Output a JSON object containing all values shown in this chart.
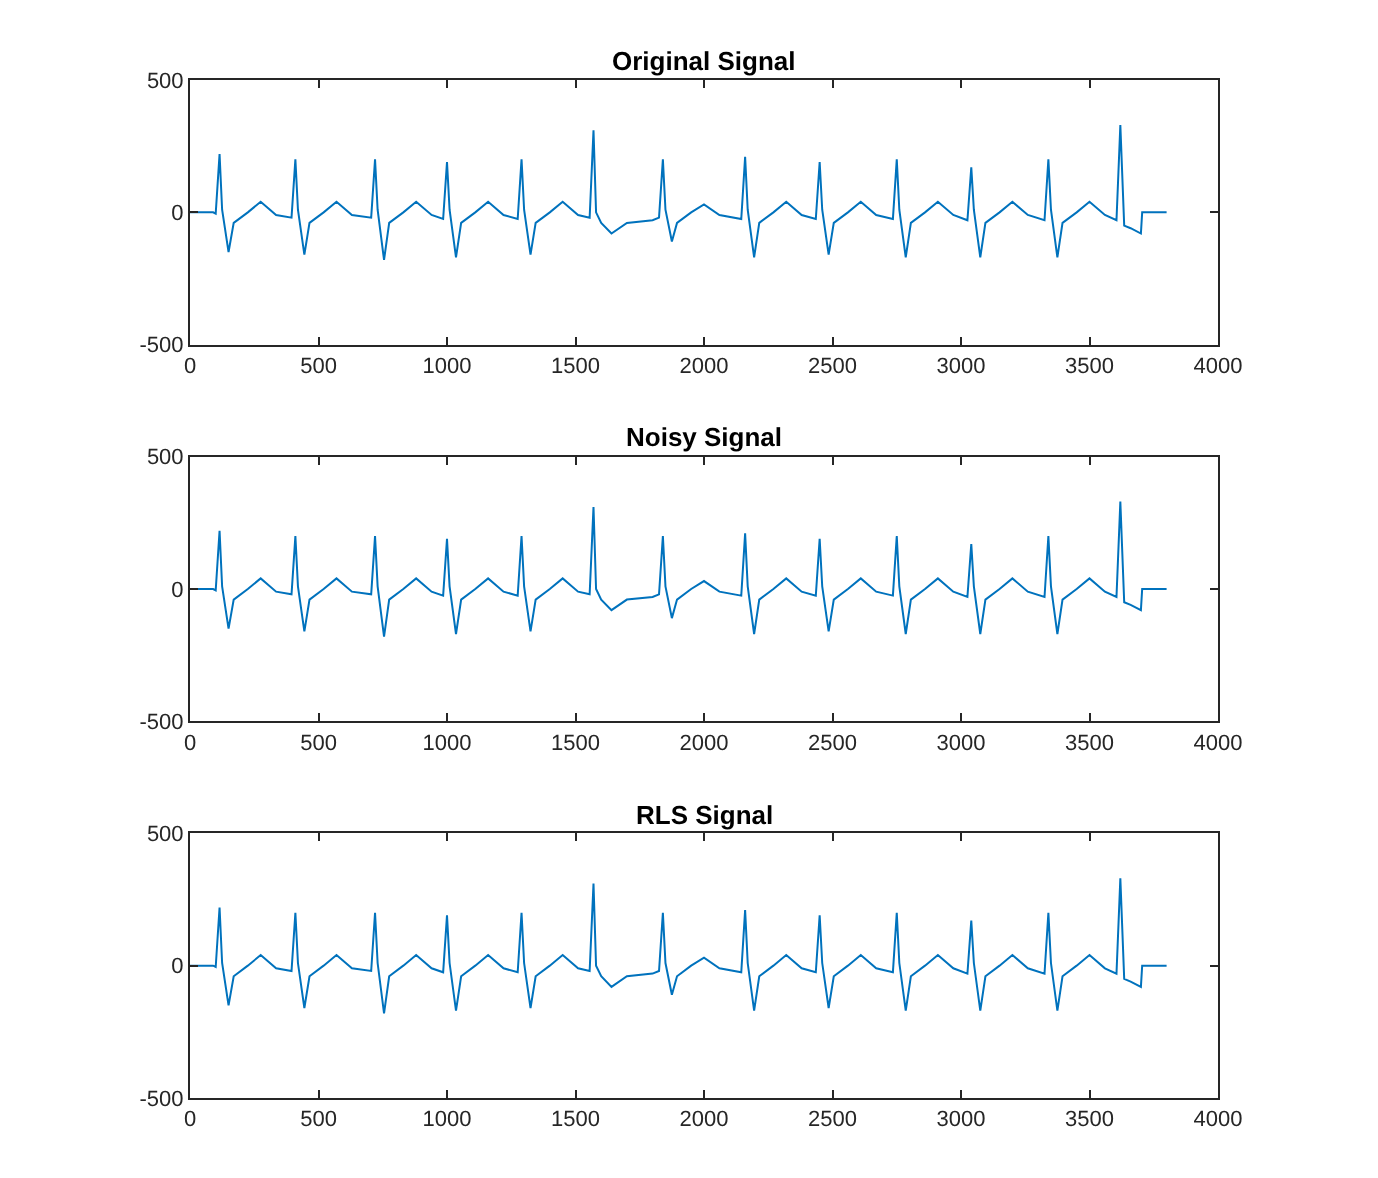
{
  "chart_data": [
    {
      "type": "line",
      "title": "Original Signal",
      "color": "#0072bd",
      "xlim": [
        0,
        4000
      ],
      "xticks": [
        0,
        500,
        1000,
        1500,
        2000,
        2500,
        3000,
        3500,
        4000
      ],
      "ylim": [
        -500,
        500
      ],
      "yticks": [
        -500,
        0,
        500
      ],
      "x": [
        0,
        90,
        100,
        115,
        125,
        150,
        170,
        225,
        275,
        335,
        395,
        410,
        420,
        445,
        465,
        520,
        570,
        630,
        705,
        720,
        730,
        755,
        775,
        830,
        880,
        940,
        985,
        1000,
        1010,
        1035,
        1055,
        1110,
        1160,
        1220,
        1275,
        1290,
        1300,
        1325,
        1345,
        1400,
        1450,
        1510,
        1555,
        1570,
        1580,
        1600,
        1640,
        1700,
        1800,
        1825,
        1840,
        1850,
        1875,
        1895,
        1950,
        2000,
        2060,
        2145,
        2160,
        2170,
        2195,
        2215,
        2270,
        2320,
        2380,
        2435,
        2450,
        2460,
        2485,
        2505,
        2560,
        2610,
        2670,
        2735,
        2750,
        2760,
        2785,
        2805,
        2860,
        2910,
        2970,
        3025,
        3040,
        3050,
        3075,
        3095,
        3150,
        3200,
        3260,
        3325,
        3340,
        3350,
        3375,
        3395,
        3450,
        3500,
        3560,
        3605,
        3620,
        3635,
        3660,
        3700,
        3705,
        3800
      ],
      "values": [
        0,
        0,
        -5,
        220,
        10,
        -150,
        -40,
        0,
        40,
        -10,
        -20,
        200,
        10,
        -160,
        -40,
        0,
        40,
        -10,
        -20,
        200,
        10,
        -180,
        -40,
        0,
        40,
        -10,
        -25,
        190,
        10,
        -170,
        -40,
        0,
        40,
        -10,
        -25,
        200,
        10,
        -160,
        -40,
        0,
        40,
        -10,
        -20,
        310,
        0,
        -40,
        -80,
        -40,
        -30,
        -20,
        200,
        10,
        -110,
        -40,
        0,
        30,
        -10,
        -25,
        210,
        10,
        -170,
        -40,
        0,
        40,
        -10,
        -25,
        190,
        10,
        -160,
        -40,
        0,
        40,
        -10,
        -25,
        200,
        10,
        -170,
        -40,
        0,
        40,
        -10,
        -30,
        170,
        10,
        -170,
        -40,
        0,
        40,
        -10,
        -30,
        200,
        10,
        -170,
        -40,
        0,
        40,
        -10,
        -30,
        330,
        -50,
        -60,
        -80,
        0,
        0
      ]
    },
    {
      "type": "line",
      "title": "Noisy Signal",
      "color": "#0072bd",
      "xlim": [
        0,
        4000
      ],
      "xticks": [
        0,
        500,
        1000,
        1500,
        2000,
        2500,
        3000,
        3500,
        4000
      ],
      "ylim": [
        -500,
        500
      ],
      "yticks": [
        -500,
        0,
        500
      ],
      "x": [
        0,
        90,
        100,
        115,
        125,
        150,
        170,
        225,
        275,
        335,
        395,
        410,
        420,
        445,
        465,
        520,
        570,
        630,
        705,
        720,
        730,
        755,
        775,
        830,
        880,
        940,
        985,
        1000,
        1010,
        1035,
        1055,
        1110,
        1160,
        1220,
        1275,
        1290,
        1300,
        1325,
        1345,
        1400,
        1450,
        1510,
        1555,
        1570,
        1580,
        1600,
        1640,
        1700,
        1800,
        1825,
        1840,
        1850,
        1875,
        1895,
        1950,
        2000,
        2060,
        2145,
        2160,
        2170,
        2195,
        2215,
        2270,
        2320,
        2380,
        2435,
        2450,
        2460,
        2485,
        2505,
        2560,
        2610,
        2670,
        2735,
        2750,
        2760,
        2785,
        2805,
        2860,
        2910,
        2970,
        3025,
        3040,
        3050,
        3075,
        3095,
        3150,
        3200,
        3260,
        3325,
        3340,
        3350,
        3375,
        3395,
        3450,
        3500,
        3560,
        3605,
        3620,
        3635,
        3660,
        3700,
        3705,
        3800
      ],
      "values": [
        0,
        0,
        -5,
        220,
        10,
        -150,
        -40,
        0,
        40,
        -10,
        -20,
        200,
        10,
        -160,
        -40,
        0,
        40,
        -10,
        -20,
        200,
        10,
        -180,
        -40,
        0,
        40,
        -10,
        -25,
        190,
        10,
        -170,
        -40,
        0,
        40,
        -10,
        -25,
        200,
        10,
        -160,
        -40,
        0,
        40,
        -10,
        -20,
        310,
        0,
        -40,
        -80,
        -40,
        -30,
        -20,
        200,
        10,
        -110,
        -40,
        0,
        30,
        -10,
        -25,
        210,
        10,
        -170,
        -40,
        0,
        40,
        -10,
        -25,
        190,
        10,
        -160,
        -40,
        0,
        40,
        -10,
        -25,
        200,
        10,
        -170,
        -40,
        0,
        40,
        -10,
        -30,
        170,
        10,
        -170,
        -40,
        0,
        40,
        -10,
        -30,
        200,
        10,
        -170,
        -40,
        0,
        40,
        -10,
        -30,
        330,
        -50,
        -60,
        -80,
        0,
        0
      ]
    },
    {
      "type": "line",
      "title": "RLS Signal",
      "color": "#0072bd",
      "xlim": [
        0,
        4000
      ],
      "xticks": [
        0,
        500,
        1000,
        1500,
        2000,
        2500,
        3000,
        3500,
        4000
      ],
      "ylim": [
        -500,
        500
      ],
      "yticks": [
        -500,
        0,
        500
      ],
      "x": [
        0,
        90,
        100,
        115,
        125,
        150,
        170,
        225,
        275,
        335,
        395,
        410,
        420,
        445,
        465,
        520,
        570,
        630,
        705,
        720,
        730,
        755,
        775,
        830,
        880,
        940,
        985,
        1000,
        1010,
        1035,
        1055,
        1110,
        1160,
        1220,
        1275,
        1290,
        1300,
        1325,
        1345,
        1400,
        1450,
        1510,
        1555,
        1570,
        1580,
        1600,
        1640,
        1700,
        1800,
        1825,
        1840,
        1850,
        1875,
        1895,
        1950,
        2000,
        2060,
        2145,
        2160,
        2170,
        2195,
        2215,
        2270,
        2320,
        2380,
        2435,
        2450,
        2460,
        2485,
        2505,
        2560,
        2610,
        2670,
        2735,
        2750,
        2760,
        2785,
        2805,
        2860,
        2910,
        2970,
        3025,
        3040,
        3050,
        3075,
        3095,
        3150,
        3200,
        3260,
        3325,
        3340,
        3350,
        3375,
        3395,
        3450,
        3500,
        3560,
        3605,
        3620,
        3635,
        3660,
        3700,
        3705,
        3800
      ],
      "values": [
        0,
        0,
        -5,
        220,
        10,
        -150,
        -40,
        0,
        40,
        -10,
        -20,
        200,
        10,
        -160,
        -40,
        0,
        40,
        -10,
        -20,
        200,
        10,
        -180,
        -40,
        0,
        40,
        -10,
        -25,
        190,
        10,
        -170,
        -40,
        0,
        40,
        -10,
        -25,
        200,
        10,
        -160,
        -40,
        0,
        40,
        -10,
        -20,
        310,
        0,
        -40,
        -80,
        -40,
        -30,
        -20,
        200,
        10,
        -110,
        -40,
        0,
        30,
        -10,
        -25,
        210,
        10,
        -170,
        -40,
        0,
        40,
        -10,
        -25,
        190,
        10,
        -160,
        -40,
        0,
        40,
        -10,
        -25,
        200,
        10,
        -170,
        -40,
        0,
        40,
        -10,
        -30,
        170,
        10,
        -170,
        -40,
        0,
        40,
        -10,
        -30,
        200,
        10,
        -170,
        -40,
        0,
        40,
        -10,
        -30,
        330,
        -50,
        -60,
        -80,
        0,
        0
      ]
    }
  ]
}
